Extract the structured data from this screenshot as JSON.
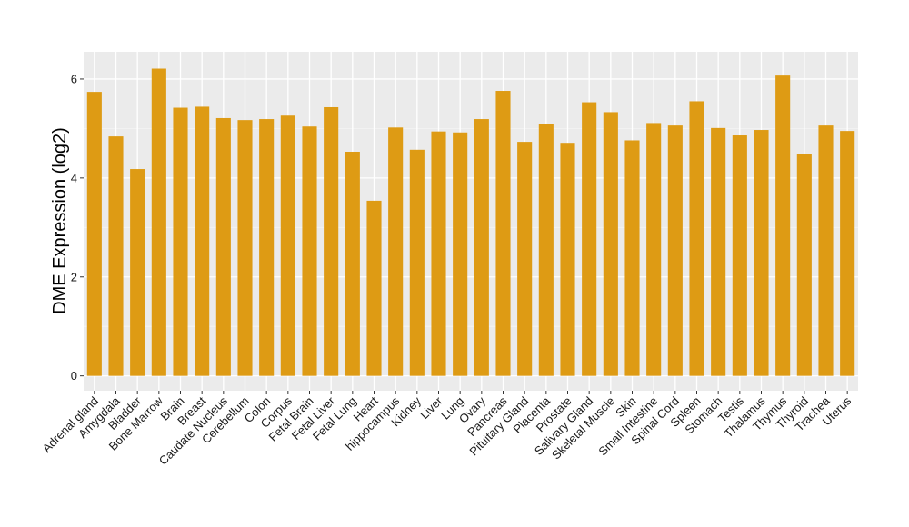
{
  "chart_data": {
    "type": "bar",
    "title": "",
    "xlabel": "",
    "ylabel": "DME Expression (log2)",
    "ylim": [
      -0.3,
      6.55
    ],
    "yticks": [
      0,
      2,
      4,
      6
    ],
    "grid": true,
    "bar_color": "#DE9B14",
    "panel_color": "#EBEBEB",
    "categories": [
      "Adrenal gland",
      "Amygdala",
      "Bladder",
      "Bone Marrow",
      "Brain",
      "Breast",
      "Caudate Nucleus",
      "Cerebellum",
      "Colon",
      "Corpus",
      "Fetal Brain",
      "Fetal Liver",
      "Fetal Lung",
      "Heart",
      "hippocampus",
      "Kidney",
      "Liver",
      "Lung",
      "Ovary",
      "Pancreas",
      "Pituitary Gland",
      "Placenta",
      "Prostate",
      "Salivary Gland",
      "Skeletal Muscle",
      "Skin",
      "Small Intestine",
      "Spinal Cord",
      "Spleen",
      "Stomach",
      "Testis",
      "Thalamus",
      "Thymus",
      "Thyroid",
      "Trachea",
      "Uterus"
    ],
    "values": [
      5.74,
      4.84,
      4.18,
      6.21,
      5.42,
      5.44,
      5.21,
      5.17,
      5.19,
      5.26,
      5.04,
      5.43,
      4.53,
      3.54,
      5.02,
      4.57,
      4.94,
      4.92,
      5.19,
      5.76,
      4.73,
      5.09,
      4.71,
      5.53,
      5.33,
      4.76,
      5.11,
      5.06,
      5.55,
      5.01,
      4.86,
      4.97,
      6.07,
      4.48,
      5.06,
      4.95
    ]
  }
}
